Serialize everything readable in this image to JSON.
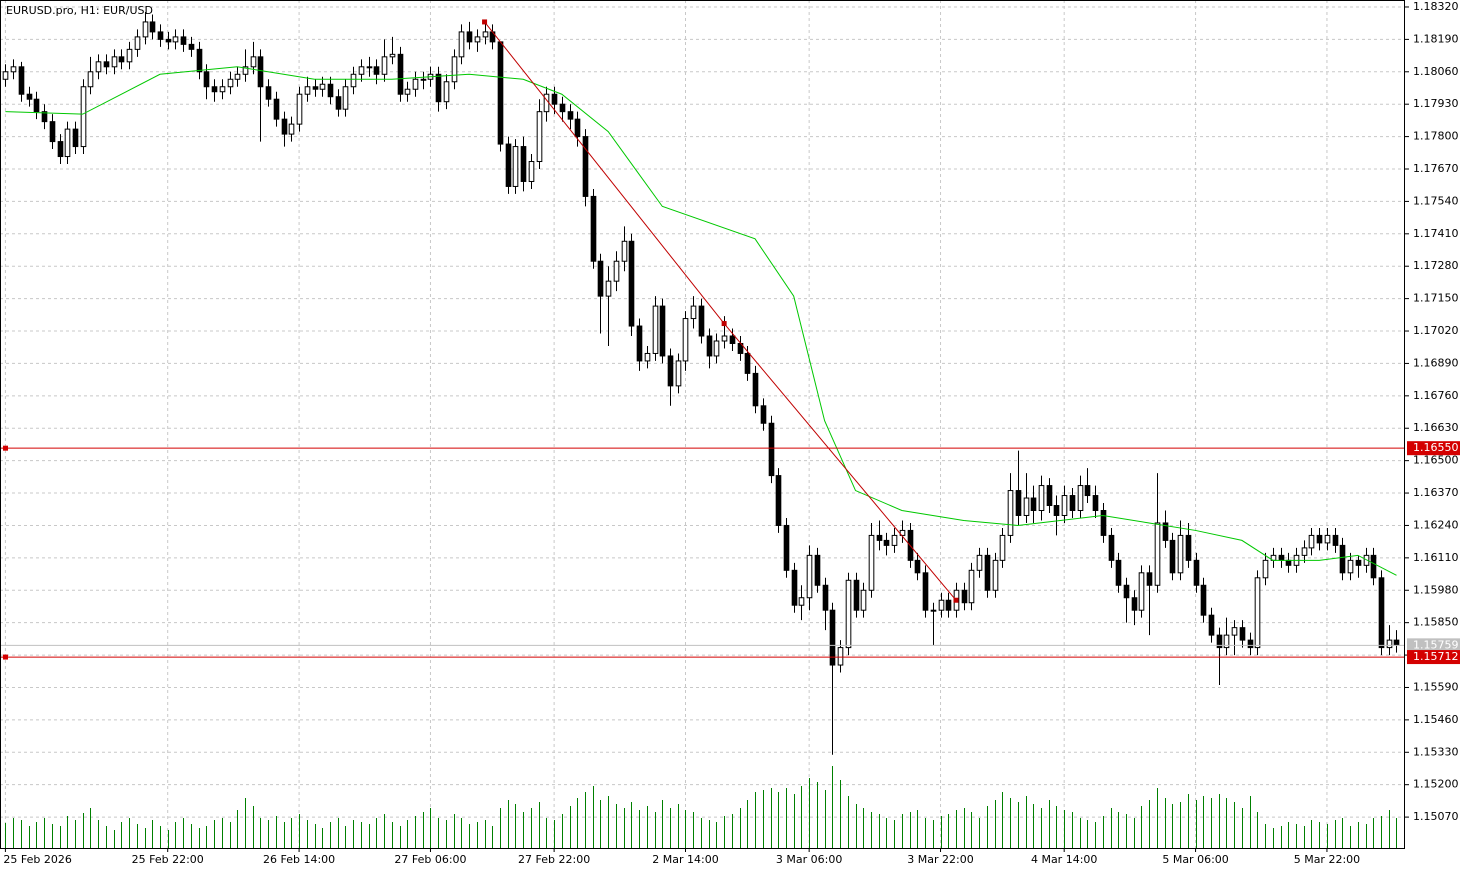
{
  "chart_data": {
    "type": "candlestick",
    "title": "EURUSD.pro, H1:  EUR/USD",
    "grid": true,
    "bull_color": "#ffffff",
    "bear_color": "#000000",
    "volume_color": "#008000",
    "xlim": [
      -0.7,
      181.1
    ],
    "ylim": [
      1.14946,
      1.18348
    ],
    "yticks": [
      {
        "value": 1.1832,
        "label": "1.18320"
      },
      {
        "value": 1.1819,
        "label": "1.18190"
      },
      {
        "value": 1.1806,
        "label": "1.18060"
      },
      {
        "value": 1.1793,
        "label": "1.17930"
      },
      {
        "value": 1.178,
        "label": "1.17800"
      },
      {
        "value": 1.1767,
        "label": "1.17670"
      },
      {
        "value": 1.1754,
        "label": "1.17540"
      },
      {
        "value": 1.1741,
        "label": "1.17410"
      },
      {
        "value": 1.1728,
        "label": "1.17280"
      },
      {
        "value": 1.1715,
        "label": "1.17150"
      },
      {
        "value": 1.1702,
        "label": "1.17020"
      },
      {
        "value": 1.1689,
        "label": "1.16890"
      },
      {
        "value": 1.1676,
        "label": "1.16760"
      },
      {
        "value": 1.1663,
        "label": "1.16630"
      },
      {
        "value": 1.165,
        "label": "1.16500"
      },
      {
        "value": 1.1637,
        "label": "1.16370"
      },
      {
        "value": 1.1624,
        "label": "1.16240"
      },
      {
        "value": 1.1611,
        "label": "1.16110"
      },
      {
        "value": 1.1598,
        "label": "1.15980"
      },
      {
        "value": 1.1585,
        "label": "1.15850"
      },
      {
        "value": 1.1572,
        "label": "1.15720"
      },
      {
        "value": 1.1559,
        "label": "1.15590"
      },
      {
        "value": 1.1546,
        "label": "1.15460"
      },
      {
        "value": 1.1533,
        "label": "1.15330"
      },
      {
        "value": 1.152,
        "label": "1.15200"
      },
      {
        "value": 1.1507,
        "label": "1.15070"
      }
    ],
    "xticks": [
      {
        "value": 0,
        "label": "25 Feb 2026"
      },
      {
        "value": 21,
        "label": "25 Feb 22:00"
      },
      {
        "value": 38,
        "label": "26 Feb 14:00"
      },
      {
        "value": 55,
        "label": "27 Feb 06:00"
      },
      {
        "value": 71,
        "label": "27 Feb 22:00"
      },
      {
        "value": 88,
        "label": "2 Mar 14:00"
      },
      {
        "value": 104,
        "label": "3 Mar 06:00"
      },
      {
        "value": 121,
        "label": "3 Mar 22:00"
      },
      {
        "value": 137,
        "label": "4 Mar 14:00"
      },
      {
        "value": 154,
        "label": "5 Mar 06:00"
      },
      {
        "value": 171,
        "label": "5 Mar 22:00"
      }
    ],
    "open": [
      1.1803,
      1.1806,
      1.1808,
      1.1797,
      1.1795,
      1.179,
      1.1786,
      1.1778,
      1.1772,
      1.1783,
      1.1776,
      1.18,
      1.1806,
      1.181,
      1.1808,
      1.1812,
      1.181,
      1.1815,
      1.182,
      1.1826,
      1.1822,
      1.1819,
      1.1818,
      1.182,
      1.1817,
      1.1815,
      1.1806,
      1.18,
      1.1798,
      1.18,
      1.1803,
      1.1805,
      1.1808,
      1.1812,
      1.18,
      1.1795,
      1.1787,
      1.1781,
      1.1785,
      1.1797,
      1.18,
      1.1799,
      1.1801,
      1.1796,
      1.1791,
      1.18,
      1.1805,
      1.1808,
      1.1808,
      1.1805,
      1.1812,
      1.1813,
      1.1797,
      1.1799,
      1.1803,
      1.1803,
      1.1805,
      1.1794,
      1.1802,
      1.1812,
      1.1822,
      1.1818,
      1.182,
      1.1822,
      1.1818,
      1.1777,
      1.176,
      1.1776,
      1.1762,
      1.177,
      1.179,
      1.1797,
      1.1793,
      1.179,
      1.1787,
      1.178,
      1.1756,
      1.173,
      1.1716,
      1.1722,
      1.173,
      1.1738,
      1.1704,
      1.169,
      1.1693,
      1.1712,
      1.1692,
      1.168,
      1.169,
      1.1707,
      1.1712,
      1.17,
      1.1692,
      1.1698,
      1.17,
      1.1697,
      1.1693,
      1.1685,
      1.1672,
      1.1665,
      1.1644,
      1.1624,
      1.1606,
      1.1592,
      1.1595,
      1.1612,
      1.16,
      1.159,
      1.1568,
      1.1575,
      1.1602,
      1.159,
      1.1598,
      1.162,
      1.1618,
      1.1616,
      1.162,
      1.1622,
      1.161,
      1.1605,
      1.159,
      1.159,
      1.1594,
      1.159,
      1.1598,
      1.1593,
      1.1606,
      1.1612,
      1.1598,
      1.161,
      1.162,
      1.1638,
      1.1628,
      1.1635,
      1.163,
      1.164,
      1.1632,
      1.1628,
      1.1636,
      1.163,
      1.164,
      1.1636,
      1.163,
      1.162,
      1.161,
      1.16,
      1.1595,
      1.159,
      1.1605,
      1.16,
      1.1625,
      1.1618,
      1.1605,
      1.162,
      1.161,
      1.16,
      1.1588,
      1.158,
      1.1575,
      1.158,
      1.1583,
      1.1578,
      1.1575,
      1.1603,
      1.161,
      1.1612,
      1.161,
      1.1608,
      1.1612,
      1.1615,
      1.162,
      1.1617,
      1.162,
      1.1616,
      1.1605,
      1.161,
      1.1608,
      1.1612,
      1.1603,
      1.1575,
      1.1578
    ],
    "high": [
      1.1809,
      1.1811,
      1.181,
      1.18,
      1.1798,
      1.1793,
      1.1789,
      1.1781,
      1.1786,
      1.1786,
      1.1803,
      1.1812,
      1.1813,
      1.1813,
      1.1815,
      1.1815,
      1.1818,
      1.1823,
      1.183,
      1.1829,
      1.1825,
      1.1822,
      1.1823,
      1.1823,
      1.182,
      1.1818,
      1.1809,
      1.1803,
      1.1803,
      1.1806,
      1.1808,
      1.1815,
      1.1818,
      1.1815,
      1.1803,
      1.1798,
      1.179,
      1.1788,
      1.18,
      1.1804,
      1.1803,
      1.1804,
      1.1804,
      1.1799,
      1.1803,
      1.1808,
      1.1811,
      1.1812,
      1.1811,
      1.1819,
      1.182,
      1.1816,
      1.1802,
      1.1806,
      1.1806,
      1.1808,
      1.1808,
      1.1805,
      1.1815,
      1.1825,
      1.1826,
      1.1823,
      1.1826,
      1.1825,
      1.1818,
      1.178,
      1.1779,
      1.178,
      1.1773,
      1.1795,
      1.18,
      1.18,
      1.1796,
      1.1793,
      1.179,
      1.1783,
      1.1759,
      1.1733,
      1.1728,
      1.1734,
      1.1744,
      1.1741,
      1.1707,
      1.1696,
      1.1716,
      1.1715,
      1.1695,
      1.1693,
      1.171,
      1.1716,
      1.1715,
      1.1703,
      1.1701,
      1.1708,
      1.1703,
      1.17,
      1.1696,
      1.1688,
      1.1675,
      1.1668,
      1.1647,
      1.1627,
      1.1609,
      1.16,
      1.1616,
      1.1615,
      1.1603,
      1.1593,
      1.1578,
      1.1605,
      1.1605,
      1.1601,
      1.1625,
      1.1626,
      1.1621,
      1.1623,
      1.1626,
      1.1625,
      1.1613,
      1.1608,
      1.1593,
      1.1597,
      1.1597,
      1.1601,
      1.1601,
      1.1609,
      1.1615,
      1.1615,
      1.1613,
      1.1623,
      1.1645,
      1.1654,
      1.1645,
      1.164,
      1.1644,
      1.1643,
      1.1636,
      1.164,
      1.1639,
      1.1644,
      1.1647,
      1.164,
      1.1633,
      1.1623,
      1.1613,
      1.1603,
      1.1598,
      1.1608,
      1.1608,
      1.1645,
      1.163,
      1.1621,
      1.1626,
      1.1625,
      1.1613,
      1.1603,
      1.1591,
      1.1583,
      1.1587,
      1.1586,
      1.1586,
      1.1581,
      1.1606,
      1.1613,
      1.1615,
      1.1615,
      1.1613,
      1.1615,
      1.1618,
      1.1623,
      1.1623,
      1.1623,
      1.1623,
      1.1619,
      1.1613,
      1.1612,
      1.1615,
      1.1615,
      1.1606,
      1.1584,
      1.1582
    ],
    "low": [
      1.18,
      1.1803,
      1.1794,
      1.1792,
      1.1787,
      1.1783,
      1.1775,
      1.1769,
      1.1769,
      1.1773,
      1.1773,
      1.1797,
      1.1803,
      1.1805,
      1.1805,
      1.1807,
      1.1807,
      1.1812,
      1.1817,
      1.1819,
      1.1816,
      1.1815,
      1.1815,
      1.1814,
      1.1812,
      1.1803,
      1.1795,
      1.1794,
      1.1795,
      1.1797,
      1.18,
      1.1802,
      1.1805,
      1.1778,
      1.1792,
      1.1784,
      1.1776,
      1.1778,
      1.1782,
      1.1794,
      1.1796,
      1.1796,
      1.1793,
      1.1788,
      1.1788,
      1.1797,
      1.1802,
      1.1804,
      1.1801,
      1.1802,
      1.1809,
      1.1794,
      1.1794,
      1.1796,
      1.1799,
      1.18,
      1.179,
      1.1791,
      1.1799,
      1.1809,
      1.1815,
      1.1814,
      1.1817,
      1.1815,
      1.1774,
      1.1757,
      1.1757,
      1.1758,
      1.1759,
      1.1767,
      1.1786,
      1.1789,
      1.1786,
      1.1783,
      1.1776,
      1.1752,
      1.1727,
      1.1701,
      1.1696,
      1.1718,
      1.1726,
      1.17,
      1.1686,
      1.1687,
      1.169,
      1.1689,
      1.1672,
      1.1677,
      1.1686,
      1.1703,
      1.1697,
      1.1687,
      1.1689,
      1.1695,
      1.1694,
      1.169,
      1.1682,
      1.1669,
      1.1662,
      1.1641,
      1.1621,
      1.1603,
      1.1589,
      1.1586,
      1.159,
      1.1597,
      1.1582,
      1.1532,
      1.1565,
      1.1572,
      1.1587,
      1.1587,
      1.1595,
      1.1614,
      1.1612,
      1.1613,
      1.1617,
      1.1607,
      1.1602,
      1.1587,
      1.1576,
      1.1587,
      1.1587,
      1.1587,
      1.159,
      1.159,
      1.1603,
      1.1595,
      1.1595,
      1.1607,
      1.1617,
      1.1624,
      1.1625,
      1.1625,
      1.1626,
      1.1629,
      1.162,
      1.1625,
      1.1627,
      1.1627,
      1.1633,
      1.1627,
      1.1617,
      1.1607,
      1.1597,
      1.1585,
      1.1584,
      1.1587,
      1.158,
      1.1597,
      1.1615,
      1.1602,
      1.1602,
      1.1607,
      1.1597,
      1.1585,
      1.1577,
      1.156,
      1.1572,
      1.1572,
      1.1575,
      1.1572,
      1.1572,
      1.16,
      1.1607,
      1.1607,
      1.1605,
      1.1605,
      1.1609,
      1.1612,
      1.1614,
      1.1614,
      1.1613,
      1.1602,
      1.1602,
      1.1603,
      1.1605,
      1.16,
      1.1572,
      1.1572,
      1.1573
    ],
    "close": [
      1.1806,
      1.1808,
      1.1797,
      1.1795,
      1.179,
      1.1786,
      1.1778,
      1.1772,
      1.1783,
      1.1776,
      1.18,
      1.1806,
      1.181,
      1.1808,
      1.1812,
      1.181,
      1.1815,
      1.182,
      1.1826,
      1.1822,
      1.1819,
      1.1818,
      1.182,
      1.1817,
      1.1815,
      1.1806,
      1.18,
      1.1798,
      1.18,
      1.1803,
      1.1805,
      1.1808,
      1.1812,
      1.18,
      1.1795,
      1.1787,
      1.1781,
      1.1785,
      1.1797,
      1.18,
      1.1799,
      1.1801,
      1.1796,
      1.1791,
      1.18,
      1.1805,
      1.1808,
      1.1808,
      1.1805,
      1.1812,
      1.1813,
      1.1797,
      1.1799,
      1.1803,
      1.1803,
      1.1805,
      1.1794,
      1.1802,
      1.1812,
      1.1822,
      1.1818,
      1.182,
      1.1822,
      1.1818,
      1.1777,
      1.176,
      1.1776,
      1.1762,
      1.177,
      1.179,
      1.1797,
      1.1793,
      1.179,
      1.1787,
      1.178,
      1.1756,
      1.173,
      1.1716,
      1.1722,
      1.173,
      1.1738,
      1.1704,
      1.169,
      1.1693,
      1.1712,
      1.1692,
      1.168,
      1.169,
      1.1707,
      1.1712,
      1.17,
      1.1692,
      1.1698,
      1.17,
      1.1697,
      1.1693,
      1.1685,
      1.1672,
      1.1665,
      1.1644,
      1.1624,
      1.1606,
      1.1592,
      1.1595,
      1.1612,
      1.16,
      1.159,
      1.1568,
      1.1575,
      1.1602,
      1.159,
      1.1598,
      1.162,
      1.1618,
      1.1616,
      1.162,
      1.1622,
      1.161,
      1.1605,
      1.159,
      1.159,
      1.1594,
      1.159,
      1.1598,
      1.1593,
      1.1606,
      1.1612,
      1.1598,
      1.161,
      1.162,
      1.1638,
      1.1628,
      1.1635,
      1.163,
      1.164,
      1.1632,
      1.1628,
      1.1636,
      1.163,
      1.164,
      1.1636,
      1.163,
      1.162,
      1.161,
      1.16,
      1.1595,
      1.159,
      1.1605,
      1.16,
      1.1625,
      1.1618,
      1.1605,
      1.162,
      1.161,
      1.16,
      1.1588,
      1.158,
      1.1575,
      1.158,
      1.1583,
      1.1578,
      1.1575,
      1.1603,
      1.161,
      1.1612,
      1.161,
      1.1608,
      1.1612,
      1.1615,
      1.162,
      1.1617,
      1.162,
      1.1616,
      1.1605,
      1.161,
      1.1608,
      1.1612,
      1.1603,
      1.1575,
      1.1578,
      1.1576
    ],
    "volume": [
      25,
      30,
      28,
      22,
      26,
      30,
      24,
      22,
      32,
      28,
      35,
      40,
      28,
      22,
      18,
      26,
      30,
      24,
      20,
      28,
      22,
      18,
      26,
      30,
      24,
      20,
      22,
      28,
      30,
      26,
      38,
      50,
      42,
      30,
      28,
      32,
      26,
      30,
      34,
      28,
      24,
      20,
      26,
      30,
      22,
      28,
      26,
      24,
      30,
      34,
      26,
      22,
      28,
      32,
      36,
      40,
      30,
      28,
      34,
      30,
      24,
      26,
      28,
      22,
      40,
      48,
      44,
      36,
      40,
      46,
      30,
      28,
      34,
      42,
      50,
      56,
      62,
      48,
      52,
      44,
      40,
      46,
      38,
      42,
      36,
      48,
      40,
      44,
      38,
      36,
      30,
      28,
      26,
      32,
      34,
      40,
      48,
      56,
      58,
      60,
      56,
      60,
      54,
      62,
      70,
      66,
      58,
      82,
      68,
      52,
      44,
      40,
      36,
      34,
      30,
      28,
      34,
      36,
      38,
      30,
      28,
      32,
      34,
      38,
      40,
      36,
      30,
      42,
      48,
      56,
      50,
      46,
      52,
      44,
      40,
      48,
      42,
      38,
      36,
      30,
      28,
      26,
      32,
      40,
      36,
      34,
      30,
      42,
      48,
      60,
      50,
      44,
      46,
      54,
      48,
      52,
      50,
      54,
      50,
      46,
      40,
      52,
      36,
      24,
      20,
      22,
      26,
      24,
      22,
      28,
      26,
      24,
      28,
      30,
      22,
      26,
      24,
      30,
      32,
      38,
      30
    ],
    "ma": {
      "color": "#00c800",
      "x": [
        0,
        10,
        20,
        30,
        40,
        50,
        60,
        67,
        72,
        78,
        85,
        97,
        102,
        106,
        110,
        116,
        124,
        131,
        142,
        148,
        154,
        160,
        164,
        170,
        175,
        180
      ],
      "values": [
        1.179,
        1.1789,
        1.1805,
        1.1808,
        1.1803,
        1.1803,
        1.1805,
        1.1803,
        1.1797,
        1.1782,
        1.1752,
        1.1739,
        1.1716,
        1.1666,
        1.1638,
        1.163,
        1.1626,
        1.1624,
        1.1628,
        1.1625,
        1.1622,
        1.1618,
        1.161,
        1.161,
        1.1612,
        1.1604
      ]
    },
    "trendline": {
      "color": "#c00000",
      "x": [
        62,
        93,
        123
      ],
      "values": [
        1.1826,
        1.1705,
        1.1594
      ]
    },
    "levels": [
      {
        "value": 1.1655,
        "label": "1.16550"
      },
      {
        "value": 1.15712,
        "label": "1.15712"
      }
    ],
    "level_color": "#d40000",
    "last_price": {
      "value": 1.15759,
      "label": "1.15759"
    }
  }
}
